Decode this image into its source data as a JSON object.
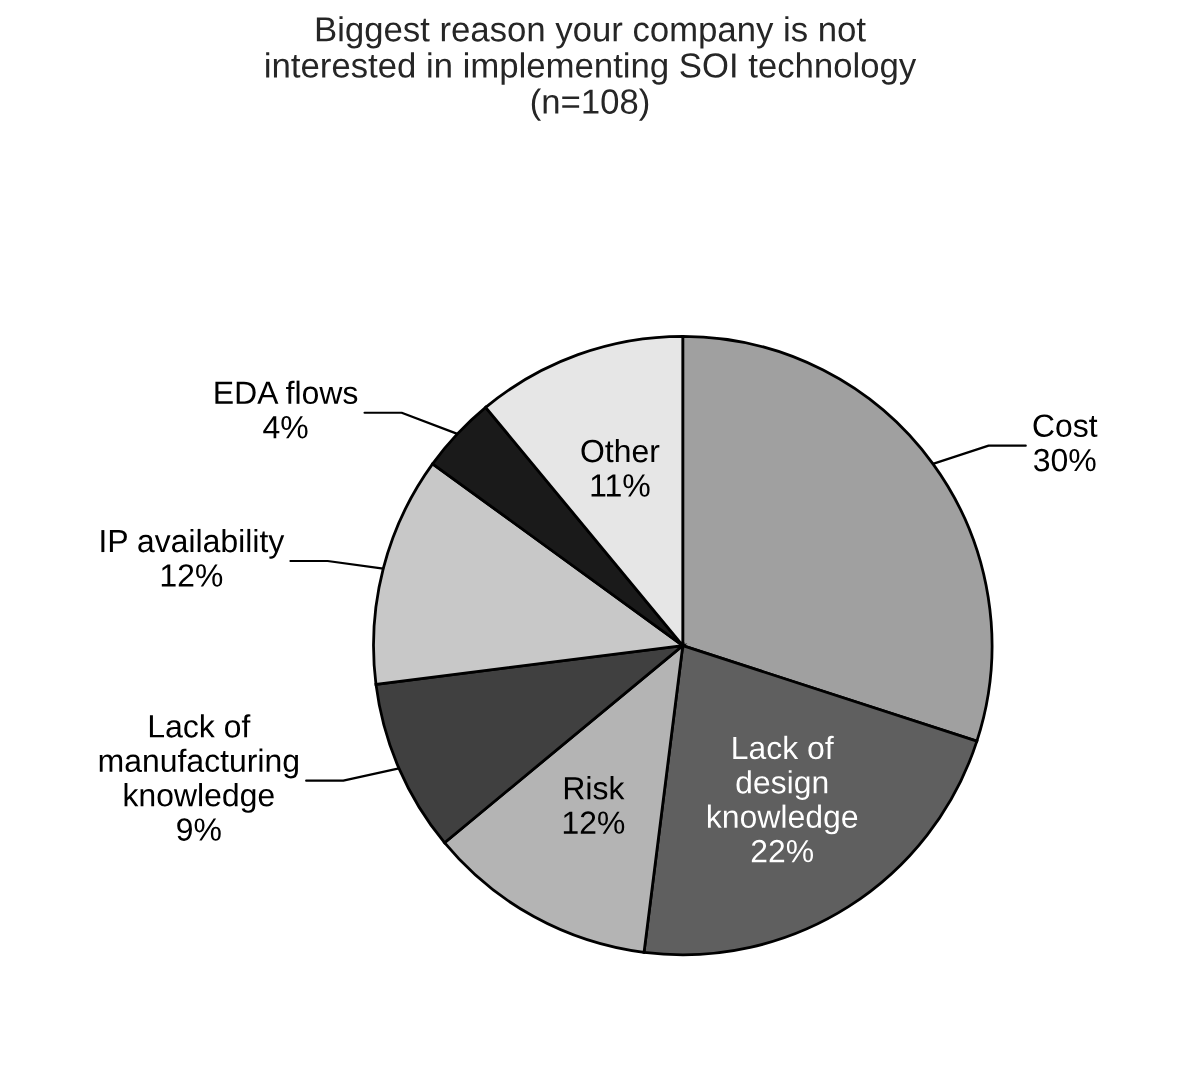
{
  "chart_data": {
    "type": "pie",
    "title": "Biggest reason your company is not\ninterested in implementing SOI technology\n(n=108)",
    "categories": [
      "Cost",
      "Lack of\ndesign\nknowledge",
      "Risk",
      "Lack of\nmanufacturing\nknowledge",
      "IP availability",
      "EDA flows",
      "Other"
    ],
    "values": [
      30,
      22,
      12,
      9,
      12,
      4,
      11
    ],
    "value_labels": [
      "30%",
      "22%",
      "12%",
      "9%",
      "12%",
      "4%",
      "11%"
    ],
    "colors": [
      "#a0a0a0",
      "#5f5f5f",
      "#b4b4b4",
      "#404040",
      "#c8c8c8",
      "#1a1a1a",
      "#e6e6e6"
    ],
    "legend": false
  }
}
